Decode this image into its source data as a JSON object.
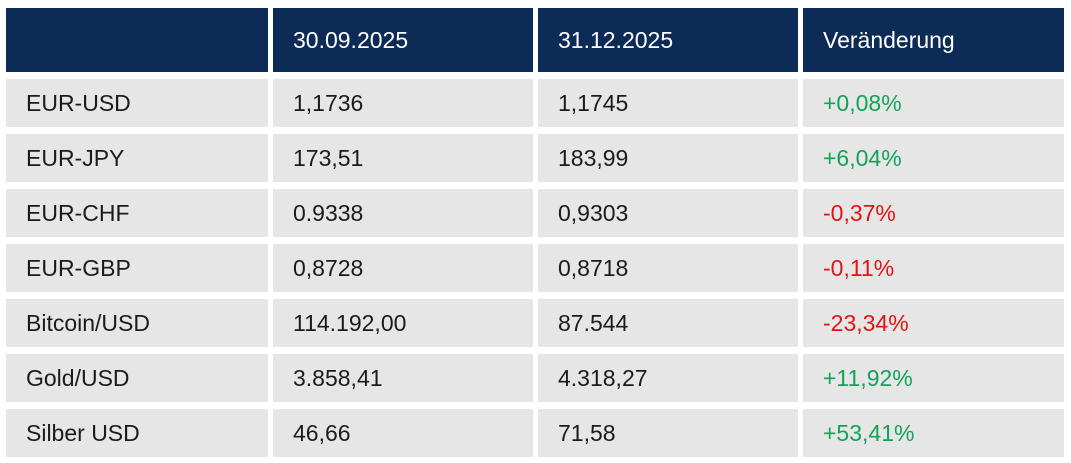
{
  "chart_data": {
    "type": "table",
    "title": "",
    "columns": [
      "",
      "30.09.2025",
      "31.12.2025",
      "Veränderung"
    ],
    "rows": [
      {
        "label": "EUR-USD",
        "value_1": "1,1736",
        "value_2": "1,1745",
        "change": "+0,08%",
        "direction": "up"
      },
      {
        "label": "EUR-JPY",
        "value_1": "173,51",
        "value_2": "183,99",
        "change": "+6,04%",
        "direction": "up"
      },
      {
        "label": "EUR-CHF",
        "value_1": "0.9338",
        "value_2": "0,9303",
        "change": "-0,37%",
        "direction": "down"
      },
      {
        "label": "EUR-GBP",
        "value_1": "0,8728",
        "value_2": "0,8718",
        "change": "-0,11%",
        "direction": "down"
      },
      {
        "label": "Bitcoin/USD",
        "value_1": "114.192,00",
        "value_2": "87.544",
        "change": "-23,34%",
        "direction": "down"
      },
      {
        "label": "Gold/USD",
        "value_1": "3.858,41",
        "value_2": "4.318,27",
        "change": "+11,92%",
        "direction": "up"
      },
      {
        "label": "Silber USD",
        "value_1": "46,66",
        "value_2": "71,58",
        "change": "+53,41%",
        "direction": "up"
      }
    ],
    "colors": {
      "header_background": "#0d2b57",
      "header_text": "#ffffff",
      "row_background": "#e6e6e6",
      "body_text": "#1b1b1b",
      "positive": "#12a35a",
      "negative": "#e41212"
    }
  }
}
